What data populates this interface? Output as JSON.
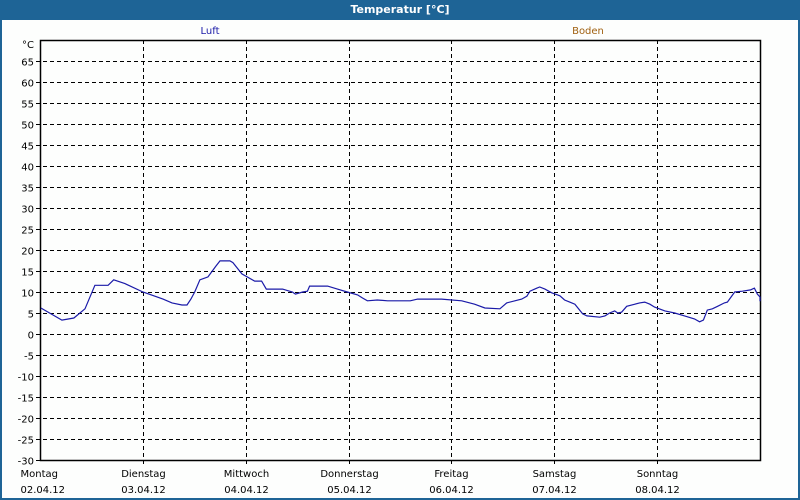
{
  "window": {
    "title": "Temperatur [°C]"
  },
  "legend": [
    {
      "label": "Luft",
      "color": "#1a1aa8"
    },
    {
      "label": "Boden",
      "color": "#a06010"
    }
  ],
  "colors": {
    "titlebar": "#1e6496",
    "series_luft": "#1a1aa8",
    "grid": "#000000"
  },
  "chart_data": {
    "type": "line",
    "title": "Temperatur [°C]",
    "xlabel": "",
    "ylabel": "°C",
    "ylim": [
      -30,
      70
    ],
    "yticks": [
      65,
      60,
      55,
      50,
      45,
      40,
      35,
      30,
      25,
      20,
      15,
      10,
      5,
      0,
      -5,
      -10,
      -15,
      -20,
      -25,
      -30
    ],
    "grid": true,
    "legend_position": "top",
    "x_unit": "hours since 02.04.12 00:00",
    "xlim": [
      0,
      168
    ],
    "categories": [
      {
        "day": "Montag",
        "date": "02.04.12"
      },
      {
        "day": "Dienstag",
        "date": "03.04.12"
      },
      {
        "day": "Mittwoch",
        "date": "04.04.12"
      },
      {
        "day": "Donnerstag",
        "date": "05.04.12"
      },
      {
        "day": "Freitag",
        "date": "06.04.12"
      },
      {
        "day": "Samstag",
        "date": "07.04.12"
      },
      {
        "day": "Sonntag",
        "date": "08.04.12"
      }
    ],
    "series": [
      {
        "name": "Luft",
        "color": "#1a1aa8",
        "points": [
          [
            0.2,
            6.2
          ],
          [
            5.1,
            3.3
          ],
          [
            7.9,
            3.8
          ],
          [
            10.5,
            6.0
          ],
          [
            12.8,
            11.6
          ],
          [
            15.9,
            11.6
          ],
          [
            17.2,
            12.9
          ],
          [
            19.8,
            12.0
          ],
          [
            24.0,
            10.0
          ],
          [
            28.7,
            8.3
          ],
          [
            30.8,
            7.4
          ],
          [
            33.1,
            6.9
          ],
          [
            34.3,
            6.9
          ],
          [
            35.2,
            8.3
          ],
          [
            36.1,
            10.0
          ],
          [
            37.3,
            12.9
          ],
          [
            39.2,
            13.6
          ],
          [
            41.0,
            16.1
          ],
          [
            42.0,
            17.4
          ],
          [
            44.3,
            17.4
          ],
          [
            45.0,
            17.0
          ],
          [
            47.1,
            14.3
          ],
          [
            50.1,
            12.6
          ],
          [
            51.7,
            12.6
          ],
          [
            52.8,
            10.7
          ],
          [
            54.4,
            10.7
          ],
          [
            56.6,
            10.7
          ],
          [
            58.9,
            10.0
          ],
          [
            59.6,
            9.5
          ],
          [
            61.3,
            10.0
          ],
          [
            62.4,
            10.2
          ],
          [
            62.9,
            11.4
          ],
          [
            67.1,
            11.4
          ],
          [
            69.4,
            10.7
          ],
          [
            71.7,
            10.0
          ],
          [
            74.1,
            9.3
          ],
          [
            75.2,
            8.6
          ],
          [
            76.4,
            7.9
          ],
          [
            78.7,
            8.1
          ],
          [
            81.1,
            7.9
          ],
          [
            86.4,
            7.9
          ],
          [
            88.1,
            8.3
          ],
          [
            93.7,
            8.3
          ],
          [
            98.4,
            7.9
          ],
          [
            101.4,
            7.1
          ],
          [
            103.8,
            6.2
          ],
          [
            107.3,
            6.0
          ],
          [
            108.9,
            7.4
          ],
          [
            110.8,
            7.9
          ],
          [
            112.4,
            8.3
          ],
          [
            113.6,
            9.0
          ],
          [
            114.3,
            10.2
          ],
          [
            115.9,
            10.9
          ],
          [
            116.6,
            11.2
          ],
          [
            117.8,
            10.7
          ],
          [
            119.4,
            9.8
          ],
          [
            121.3,
            9.1
          ],
          [
            122.4,
            8.1
          ],
          [
            123.6,
            7.6
          ],
          [
            124.8,
            7.1
          ],
          [
            126.6,
            4.8
          ],
          [
            127.6,
            4.3
          ],
          [
            130.6,
            4.0
          ],
          [
            131.8,
            4.3
          ],
          [
            132.9,
            5.0
          ],
          [
            134.1,
            5.5
          ],
          [
            134.8,
            5.0
          ],
          [
            135.7,
            5.2
          ],
          [
            136.9,
            6.6
          ],
          [
            138.8,
            7.1
          ],
          [
            139.9,
            7.4
          ],
          [
            141.1,
            7.6
          ],
          [
            142.3,
            7.1
          ],
          [
            143.4,
            6.4
          ],
          [
            145.8,
            5.5
          ],
          [
            148.1,
            5.0
          ],
          [
            150.4,
            4.3
          ],
          [
            152.7,
            3.6
          ],
          [
            153.9,
            2.9
          ],
          [
            154.8,
            3.3
          ],
          [
            155.7,
            5.7
          ],
          [
            156.9,
            6.0
          ],
          [
            158.1,
            6.6
          ],
          [
            159.7,
            7.4
          ],
          [
            160.4,
            7.6
          ],
          [
            162.1,
            10.0
          ],
          [
            163.9,
            10.2
          ],
          [
            165.8,
            10.5
          ],
          [
            166.2,
            10.7
          ],
          [
            166.7,
            10.9
          ],
          [
            167.4,
            9.5
          ],
          [
            168.6,
            8.8
          ],
          [
            169.0,
            8.1
          ],
          [
            170.0,
            7.8
          ]
        ]
      },
      {
        "name": "Boden",
        "color": "#a06010",
        "points": []
      }
    ]
  }
}
